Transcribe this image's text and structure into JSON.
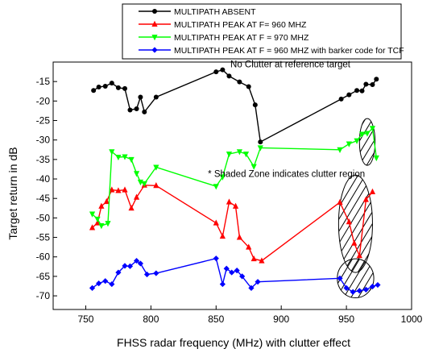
{
  "chart_data": {
    "type": "line",
    "xlabel": "FHSS radar frequency (MHz) with clutter effect",
    "ylabel": "Target return in dB",
    "xlim": [
      725,
      1000
    ],
    "ylim": [
      -73.5,
      -10
    ],
    "x_ticks": [
      750,
      800,
      850,
      900,
      950,
      1000
    ],
    "y_ticks": [
      -15,
      -20,
      -25,
      -30,
      -35,
      -40,
      -45,
      -50,
      -55,
      -60,
      -65,
      -70
    ],
    "grid": false,
    "legend_position": "top",
    "series": [
      {
        "name": "MULTIPATH ABSENT",
        "color": "#000000",
        "marker": "circle",
        "points": [
          [
            756,
            -17.3
          ],
          [
            760,
            -16.4
          ],
          [
            765,
            -16.2
          ],
          [
            770,
            -15.4
          ],
          [
            775,
            -16.6
          ],
          [
            780,
            -16.8
          ],
          [
            784,
            -22.3
          ],
          [
            789,
            -22.0
          ],
          [
            792,
            -19.0
          ],
          [
            795,
            -22.8
          ],
          [
            804,
            -19.0
          ],
          [
            850,
            -12.5
          ],
          [
            855,
            -12.0
          ],
          [
            860,
            -13.6
          ],
          [
            868,
            -15.1
          ],
          [
            875,
            -16.3
          ],
          [
            880,
            -21.0
          ],
          [
            884,
            -30.5
          ],
          [
            946,
            -19.5
          ],
          [
            952,
            -18.4
          ],
          [
            958,
            -17.3
          ],
          [
            962,
            -17.4
          ],
          [
            965,
            -15.7
          ],
          [
            970,
            -15.8
          ],
          [
            973,
            -14.4
          ]
        ]
      },
      {
        "name": "MULTIPATH PEAK AT F= 960 MHZ",
        "color": "#ff0000",
        "marker": "triangle-up",
        "points": [
          [
            755,
            -52.5
          ],
          [
            759,
            -51.3
          ],
          [
            762,
            -47.0
          ],
          [
            766,
            -45.8
          ],
          [
            770,
            -42.8
          ],
          [
            775,
            -43.0
          ],
          [
            780,
            -42.8
          ],
          [
            785,
            -47.5
          ],
          [
            789,
            -44.7
          ],
          [
            795,
            -41.6
          ],
          [
            804,
            -41.7
          ],
          [
            850,
            -51.3
          ],
          [
            855,
            -54.7
          ],
          [
            860,
            -45.9
          ],
          [
            865,
            -47.0
          ],
          [
            868,
            -55.0
          ],
          [
            875,
            -57.5
          ],
          [
            879,
            -60.5
          ],
          [
            885,
            -61.0
          ],
          [
            945,
            -46.0
          ],
          [
            952,
            -51.0
          ],
          [
            956,
            -56.5
          ],
          [
            960,
            -59.7
          ],
          [
            965,
            -45.3
          ],
          [
            970,
            -43.3
          ]
        ]
      },
      {
        "name": "MULTIPATH PEAK AT F = 970 MHZ",
        "color": "#00ff00",
        "marker": "triangle-down",
        "points": [
          [
            755,
            -49.0
          ],
          [
            759,
            -50.3
          ],
          [
            762,
            -52.0
          ],
          [
            767,
            -51.4
          ],
          [
            770,
            -33.0
          ],
          [
            775,
            -34.4
          ],
          [
            780,
            -34.3
          ],
          [
            785,
            -35.0
          ],
          [
            789,
            -38.6
          ],
          [
            792,
            -40.8
          ],
          [
            795,
            -41.2
          ],
          [
            804,
            -37.0
          ],
          [
            850,
            -41.9
          ],
          [
            855,
            -39.5
          ],
          [
            860,
            -33.6
          ],
          [
            868,
            -33.0
          ],
          [
            873,
            -33.6
          ],
          [
            879,
            -36.8
          ],
          [
            884,
            -32.0
          ],
          [
            945,
            -32.5
          ],
          [
            952,
            -31.0
          ],
          [
            958,
            -30.2
          ],
          [
            962,
            -28.5
          ],
          [
            966,
            -28.3
          ],
          [
            970,
            -27.0
          ],
          [
            973,
            -34.6
          ]
        ]
      },
      {
        "name": "MULTIPATH PEAK AT F = 960 MHZ with barker code for TCF",
        "color": "#0000ff",
        "marker": "diamond",
        "points": [
          [
            755,
            -68.0
          ],
          [
            760,
            -66.8
          ],
          [
            765,
            -66.2
          ],
          [
            770,
            -67.0
          ],
          [
            775,
            -64.0
          ],
          [
            780,
            -62.3
          ],
          [
            784,
            -62.4
          ],
          [
            789,
            -61.0
          ],
          [
            792,
            -61.7
          ],
          [
            797,
            -64.5
          ],
          [
            804,
            -64.2
          ],
          [
            850,
            -60.4
          ],
          [
            855,
            -67.0
          ],
          [
            858,
            -63.0
          ],
          [
            862,
            -64.0
          ],
          [
            866,
            -63.5
          ],
          [
            870,
            -65.0
          ],
          [
            877,
            -68.0
          ],
          [
            882,
            -66.4
          ],
          [
            945,
            -65.5
          ],
          [
            950,
            -68.0
          ],
          [
            955,
            -69.0
          ],
          [
            960,
            -68.7
          ],
          [
            965,
            -68.4
          ],
          [
            970,
            -67.6
          ],
          [
            974,
            -67.2
          ]
        ]
      }
    ],
    "annotations": [
      {
        "text": "No Clutter at reference target",
        "x": 907,
        "y": -11.3
      },
      {
        "text": "* Shaded Zone indicates clutter region",
        "x": 904,
        "y": -39.5
      }
    ],
    "clutter_zones": [
      {
        "cx": 966,
        "cy": -30.5,
        "rx": 6,
        "ry": 6
      },
      {
        "cx": 957,
        "cy": -51.5,
        "rx": 13,
        "ry": 12.5
      },
      {
        "cx": 957,
        "cy": -65.5,
        "rx": 14,
        "ry": 5
      }
    ]
  }
}
